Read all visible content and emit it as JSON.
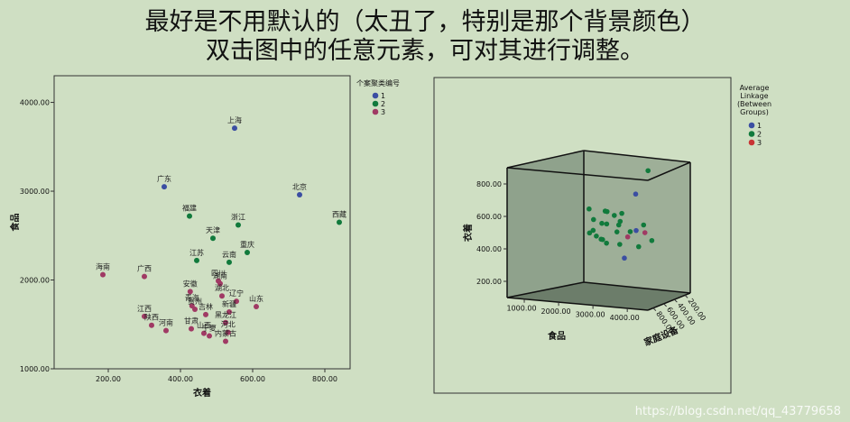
{
  "header": {
    "line1": "最好是不用默认的（太丑了，特别是那个背景颜色）",
    "line2": "双击图中的任意元素，可对其进行调整。"
  },
  "colors": {
    "1": "#3b4ea2",
    "2": "#117a3c",
    "3": "#a03a64"
  },
  "chart_data": [
    {
      "type": "scatter",
      "xlabel": "衣着",
      "ylabel": "食品",
      "xlim": [
        50,
        870
      ],
      "ylim": [
        1000,
        4300
      ],
      "xticks": [
        "200.00",
        "400.00",
        "600.00",
        "800.00"
      ],
      "yticks": [
        "1000.00",
        "2000.00",
        "3000.00",
        "4000.00"
      ],
      "legend": {
        "title": "个案聚类编号",
        "entries": [
          "1",
          "2",
          "3"
        ]
      },
      "points": [
        {
          "label": "上海",
          "x": 550,
          "y": 3710,
          "cluster": 1
        },
        {
          "label": "北京",
          "x": 730,
          "y": 2960,
          "cluster": 1
        },
        {
          "label": "广东",
          "x": 355,
          "y": 3050,
          "cluster": 1
        },
        {
          "label": "西藏",
          "x": 840,
          "y": 2650,
          "cluster": 2
        },
        {
          "label": "浙江",
          "x": 560,
          "y": 2620,
          "cluster": 2
        },
        {
          "label": "福建",
          "x": 425,
          "y": 2720,
          "cluster": 2
        },
        {
          "label": "天津",
          "x": 490,
          "y": 2470,
          "cluster": 2
        },
        {
          "label": "重庆",
          "x": 585,
          "y": 2310,
          "cluster": 2
        },
        {
          "label": "云南",
          "x": 535,
          "y": 2200,
          "cluster": 2
        },
        {
          "label": "江苏",
          "x": 445,
          "y": 2220,
          "cluster": 2
        },
        {
          "label": "海南",
          "x": 185,
          "y": 2060,
          "cluster": 3
        },
        {
          "label": "广西",
          "x": 300,
          "y": 2040,
          "cluster": 3
        },
        {
          "label": "四川",
          "x": 505,
          "y": 1990,
          "cluster": 3
        },
        {
          "label": "湖南",
          "x": 510,
          "y": 1960,
          "cluster": 3
        },
        {
          "label": "安徽",
          "x": 427,
          "y": 1870,
          "cluster": 3
        },
        {
          "label": "湖北",
          "x": 515,
          "y": 1820,
          "cluster": 3
        },
        {
          "label": "辽宁",
          "x": 555,
          "y": 1760,
          "cluster": 3
        },
        {
          "label": "山东",
          "x": 610,
          "y": 1700,
          "cluster": 3
        },
        {
          "label": "青海",
          "x": 432,
          "y": 1710,
          "cluster": 3
        },
        {
          "label": "贵州",
          "x": 440,
          "y": 1670,
          "cluster": 3
        },
        {
          "label": "吉林",
          "x": 470,
          "y": 1610,
          "cluster": 3
        },
        {
          "label": "新疆",
          "x": 535,
          "y": 1640,
          "cluster": 3
        },
        {
          "label": "江西",
          "x": 300,
          "y": 1590,
          "cluster": 3
        },
        {
          "label": "陕西",
          "x": 320,
          "y": 1490,
          "cluster": 3
        },
        {
          "label": "甘肃",
          "x": 430,
          "y": 1450,
          "cluster": 3
        },
        {
          "label": "黑龙江",
          "x": 525,
          "y": 1520,
          "cluster": 3
        },
        {
          "label": "河北",
          "x": 532,
          "y": 1410,
          "cluster": 3
        },
        {
          "label": "河南",
          "x": 360,
          "y": 1430,
          "cluster": 3
        },
        {
          "label": "山西",
          "x": 465,
          "y": 1400,
          "cluster": 3
        },
        {
          "label": "宁夏",
          "x": 480,
          "y": 1370,
          "cluster": 3
        },
        {
          "label": "内蒙古",
          "x": 525,
          "y": 1310,
          "cluster": 3
        }
      ]
    },
    {
      "type": "scatter",
      "dims": 3,
      "ylabel": "衣着",
      "xlabel": "食品",
      "zlabel": "家庭设备",
      "yticks": [
        "200.00",
        "400.00",
        "600.00",
        "800.00"
      ],
      "xticks": [
        "1000.00",
        "2000.00",
        "3000.00",
        "4000.00"
      ],
      "zticks": [
        "200.00",
        "400.00",
        "600.00",
        "800.00"
      ],
      "legend": {
        "title": "Average Linkage (Between Groups)",
        "entries": [
          "1",
          "2",
          "3"
        ]
      },
      "points": [
        {
          "x": 3700,
          "y": 550,
          "z": 700,
          "cluster": 1
        },
        {
          "x": 2960,
          "y": 730,
          "z": 440,
          "cluster": 1
        },
        {
          "x": 3050,
          "y": 355,
          "z": 590,
          "cluster": 1
        },
        {
          "x": 2650,
          "y": 840,
          "z": 200,
          "cluster": 2
        },
        {
          "x": 2620,
          "y": 560,
          "z": 480,
          "cluster": 2
        },
        {
          "x": 2720,
          "y": 425,
          "z": 520,
          "cluster": 2
        },
        {
          "x": 2470,
          "y": 490,
          "z": 460,
          "cluster": 2
        },
        {
          "x": 2310,
          "y": 585,
          "z": 430,
          "cluster": 2
        },
        {
          "x": 2200,
          "y": 535,
          "z": 470,
          "cluster": 2
        },
        {
          "x": 2220,
          "y": 445,
          "z": 520,
          "cluster": 2
        },
        {
          "x": 2100,
          "y": 610,
          "z": 450,
          "cluster": 2
        },
        {
          "x": 2300,
          "y": 520,
          "z": 380,
          "cluster": 2
        },
        {
          "x": 2400,
          "y": 460,
          "z": 600,
          "cluster": 2
        },
        {
          "x": 2150,
          "y": 470,
          "z": 560,
          "cluster": 2
        },
        {
          "x": 2000,
          "y": 500,
          "z": 540,
          "cluster": 2
        },
        {
          "x": 1900,
          "y": 560,
          "z": 500,
          "cluster": 2
        },
        {
          "x": 2500,
          "y": 600,
          "z": 420,
          "cluster": 2
        },
        {
          "x": 2550,
          "y": 480,
          "z": 350,
          "cluster": 2
        },
        {
          "x": 2800,
          "y": 520,
          "z": 300,
          "cluster": 2
        },
        {
          "x": 2350,
          "y": 620,
          "z": 520,
          "cluster": 2
        },
        {
          "x": 2050,
          "y": 640,
          "z": 600,
          "cluster": 2
        },
        {
          "x": 2600,
          "y": 380,
          "z": 280,
          "cluster": 2
        },
        {
          "x": 2900,
          "y": 420,
          "z": 250,
          "cluster": 2
        },
        {
          "x": 2450,
          "y": 560,
          "z": 610,
          "cluster": 2
        },
        {
          "x": 2250,
          "y": 420,
          "z": 490,
          "cluster": 2
        },
        {
          "x": 1700,
          "y": 470,
          "z": 470,
          "cluster": 2
        },
        {
          "x": 2700,
          "y": 460,
          "z": 430,
          "cluster": 3
        },
        {
          "x": 2950,
          "y": 480,
          "z": 340,
          "cluster": 3
        }
      ]
    }
  ],
  "watermark": "https://blog.csdn.net/qq_43779658"
}
